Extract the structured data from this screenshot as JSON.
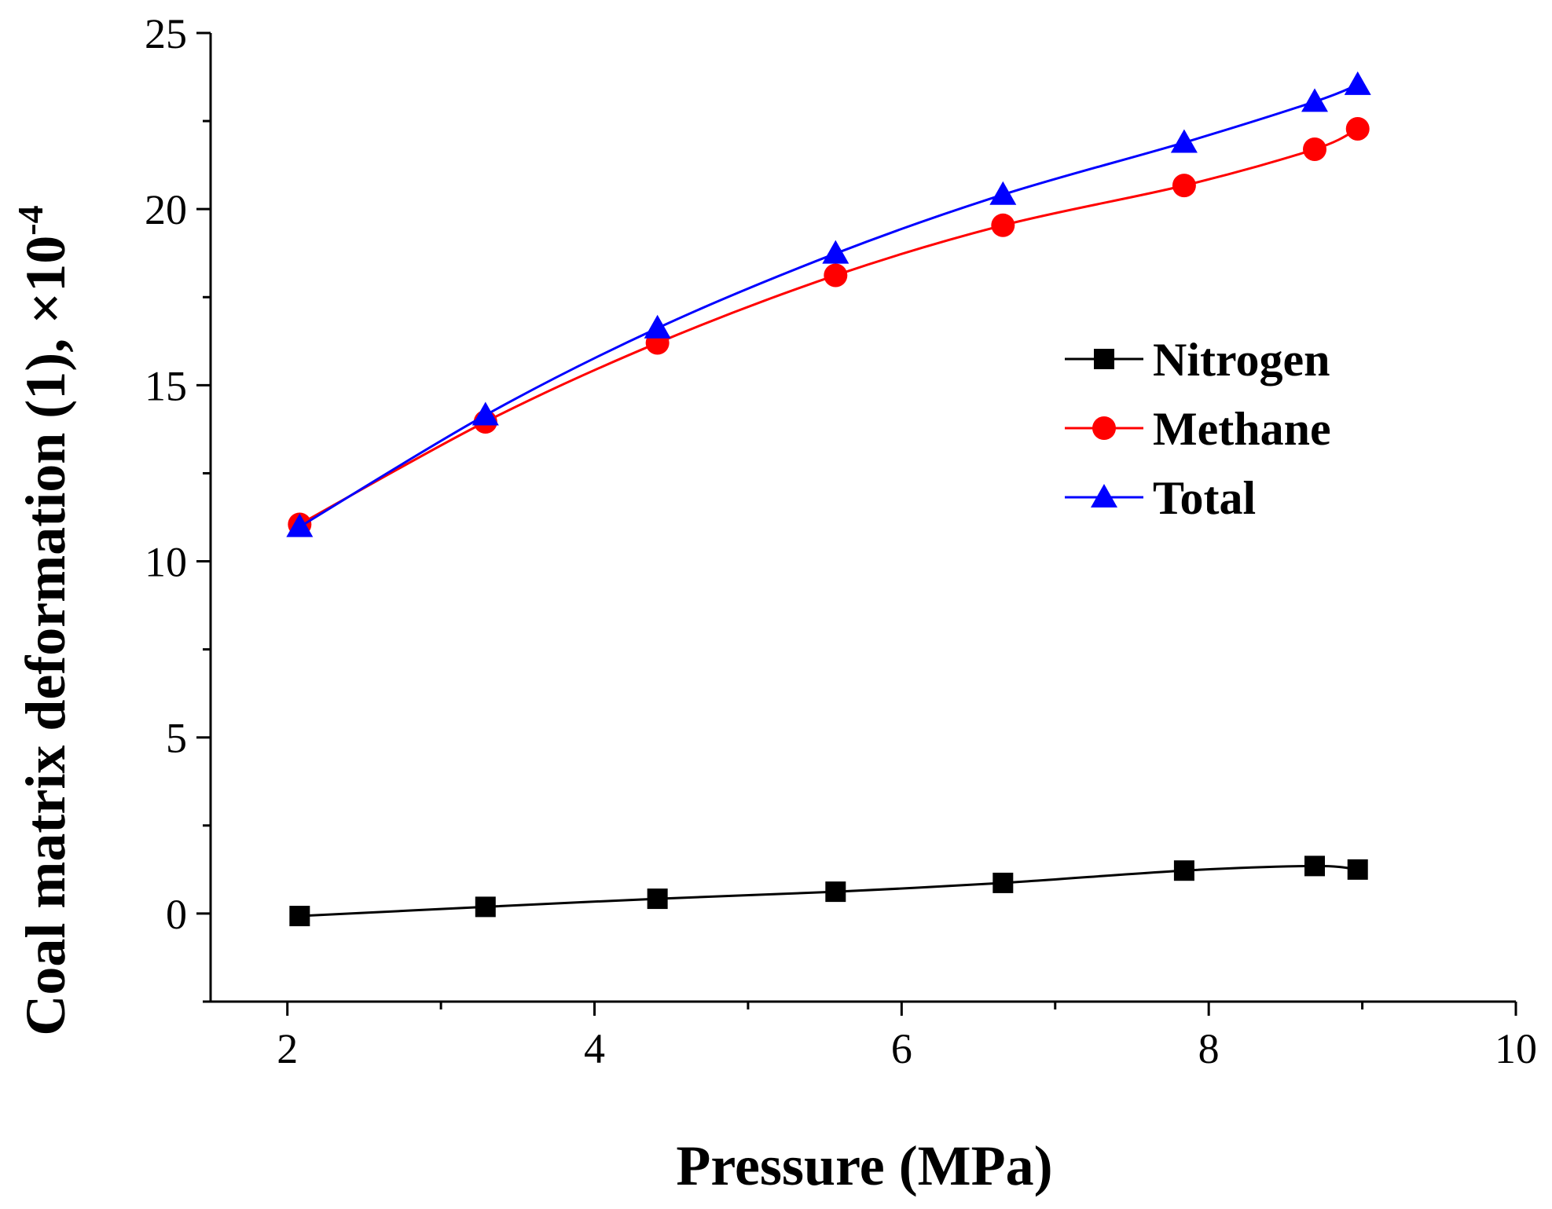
{
  "colors": {
    "Nitrogen": "#000000",
    "Methane": "#ff0000",
    "Total": "#0000ff"
  },
  "chart_data": {
    "type": "line",
    "xlabel": "Pressure (MPa)",
    "ylabel": "Coal matrix deformation (1), ×10",
    "ylabel_exponent": "-4",
    "xlim": [
      1.5,
      10
    ],
    "ylim": [
      -2.5,
      25
    ],
    "x_ticks": [
      2,
      4,
      6,
      8,
      10
    ],
    "y_ticks": [
      0,
      5,
      10,
      15,
      20,
      25
    ],
    "grid": false,
    "legend": "right",
    "series": [
      {
        "name": "Nitrogen",
        "marker": "square",
        "x": [
          2.08,
          3.29,
          4.41,
          5.57,
          6.66,
          7.84,
          8.69,
          8.97
        ],
        "y": [
          -0.07,
          0.19,
          0.42,
          0.62,
          0.87,
          1.22,
          1.35,
          1.25
        ]
      },
      {
        "name": "Methane",
        "marker": "circle",
        "x": [
          2.08,
          3.29,
          4.41,
          5.57,
          6.66,
          7.84,
          8.69,
          8.97
        ],
        "y": [
          11.05,
          13.96,
          16.2,
          18.12,
          19.54,
          20.67,
          21.7,
          22.28
        ]
      },
      {
        "name": "Total",
        "marker": "triangle",
        "x": [
          2.08,
          3.29,
          4.41,
          5.57,
          6.66,
          7.84,
          8.69,
          8.97
        ],
        "y": [
          10.98,
          14.15,
          16.62,
          18.74,
          20.41,
          21.89,
          23.05,
          23.53
        ]
      }
    ]
  }
}
